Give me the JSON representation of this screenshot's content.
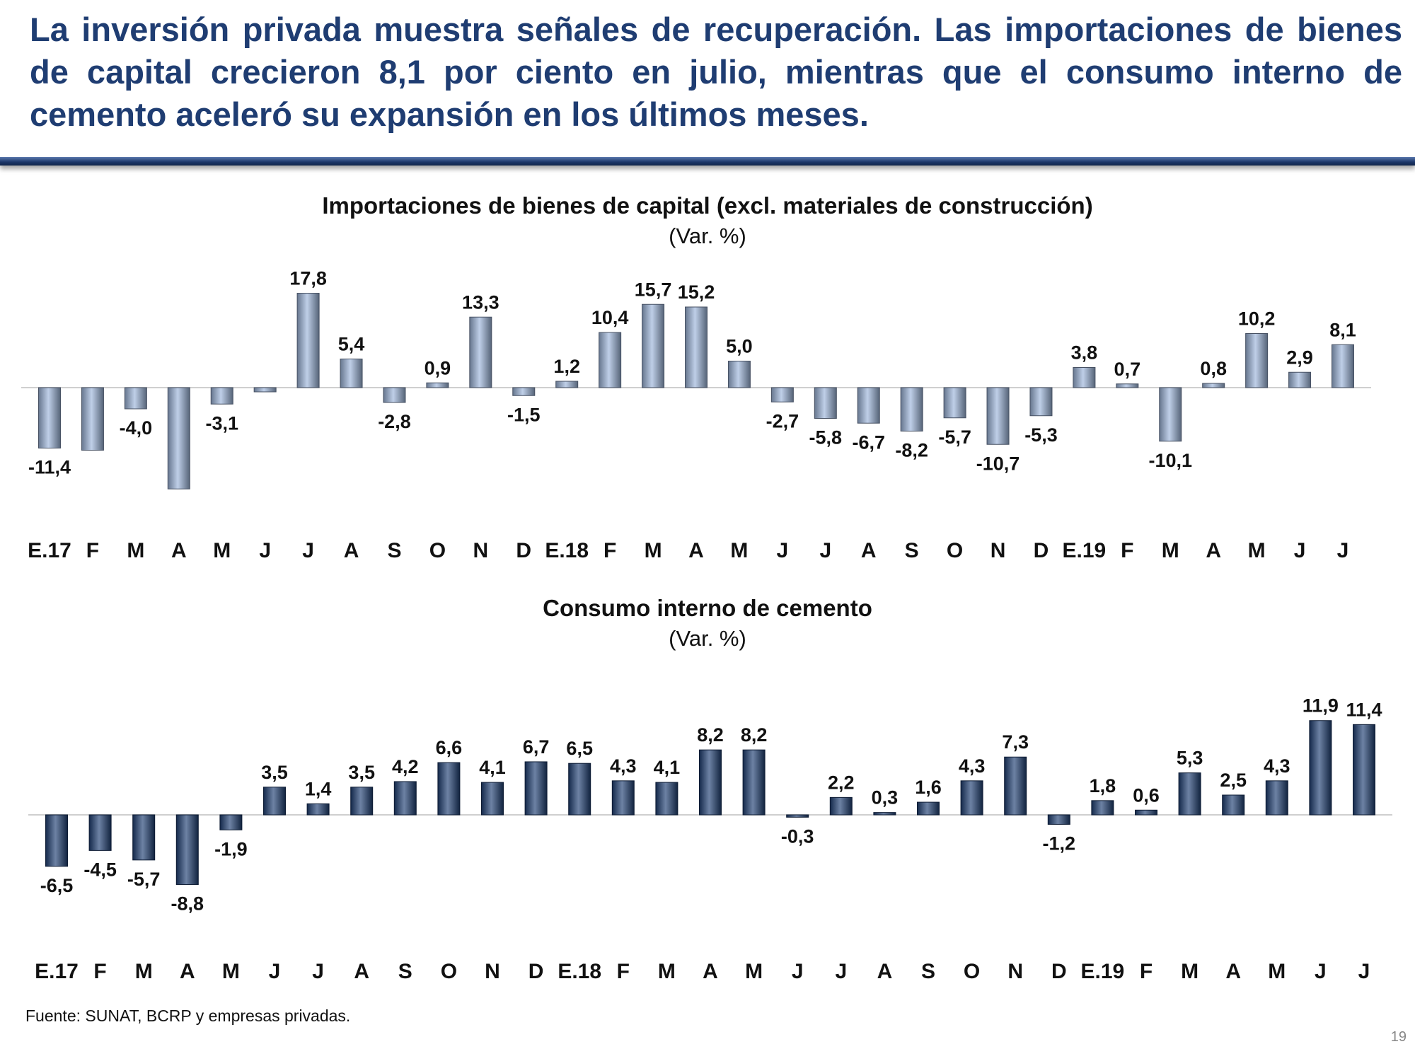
{
  "slide": {
    "headline": "La inversión privada muestra señales de recuperación. Las importaciones de bienes de capital crecieron 8,1 por ciento en julio, mientras que el consumo interno de cemento aceleró su expansión en los últimos meses.",
    "source": "Fuente: SUNAT, BCRP y empresas privadas.",
    "page_number": "19"
  },
  "chart_data": [
    {
      "type": "bar",
      "title": "Importaciones de bienes de capital (excl. materiales de construcción)",
      "subtitle": "(Var. %)",
      "color": "#9DB5DB",
      "categories": [
        "E.17",
        "F",
        "M",
        "A",
        "M",
        "J",
        "J",
        "A",
        "S",
        "O",
        "N",
        "D",
        "E.18",
        "F",
        "M",
        "A",
        "M",
        "J",
        "J",
        "A",
        "S",
        "O",
        "N",
        "D",
        "E.19",
        "F",
        "M",
        "A",
        "M",
        "J",
        "J"
      ],
      "values": [
        -11.4,
        -11.8,
        -4.0,
        -19.1,
        -3.1,
        -0.8,
        17.8,
        5.4,
        -2.8,
        0.9,
        13.3,
        -1.5,
        1.2,
        10.4,
        15.7,
        15.2,
        5.0,
        -2.7,
        -5.8,
        -6.7,
        -8.2,
        -5.7,
        -10.7,
        -5.3,
        3.8,
        0.7,
        -10.1,
        0.8,
        10.2,
        2.9,
        8.1
      ],
      "labels": [
        "-11,4",
        "",
        "-4,0",
        "",
        "-3,1",
        "",
        "17,8",
        "5,4",
        "-2,8",
        "0,9",
        "13,3",
        "-1,5",
        "1,2",
        "10,4",
        "15,7",
        "15,2",
        "5,0",
        "-2,7",
        "-5,8",
        "-6,7",
        "-8,2",
        "-5,7",
        "-10,7",
        "-5,3",
        "3,8",
        "0,7",
        "-10,1",
        "0,8",
        "10,2",
        "2,9",
        "8,1"
      ]
    },
    {
      "type": "bar",
      "title": "Consumo interno de cemento",
      "subtitle": "(Var. %)",
      "color": "#1F3F73",
      "categories": [
        "E.17",
        "F",
        "M",
        "A",
        "M",
        "J",
        "J",
        "A",
        "S",
        "O",
        "N",
        "D",
        "E.18",
        "F",
        "M",
        "A",
        "M",
        "J",
        "J",
        "A",
        "S",
        "O",
        "N",
        "D",
        "E.19",
        "F",
        "M",
        "A",
        "M",
        "J",
        "J"
      ],
      "values": [
        -6.5,
        -4.5,
        -5.7,
        -8.8,
        -1.9,
        3.5,
        1.4,
        3.5,
        4.2,
        6.6,
        4.1,
        6.7,
        6.5,
        4.3,
        4.1,
        8.2,
        8.2,
        -0.3,
        2.2,
        0.3,
        1.6,
        4.3,
        7.3,
        -1.2,
        1.8,
        0.6,
        5.3,
        2.5,
        4.3,
        11.9,
        11.4
      ],
      "labels": [
        "-6,5",
        "-4,5",
        "-5,7",
        "-8,8",
        "-1,9",
        "3,5",
        "1,4",
        "3,5",
        "4,2",
        "6,6",
        "4,1",
        "6,7",
        "6,5",
        "4,3",
        "4,1",
        "8,2",
        "8,2",
        "-0,3",
        "2,2",
        "0,3",
        "1,6",
        "4,3",
        "7,3",
        "-1,2",
        "1,8",
        "0,6",
        "5,3",
        "2,5",
        "4,3",
        "11,9",
        "11,4"
      ]
    }
  ]
}
